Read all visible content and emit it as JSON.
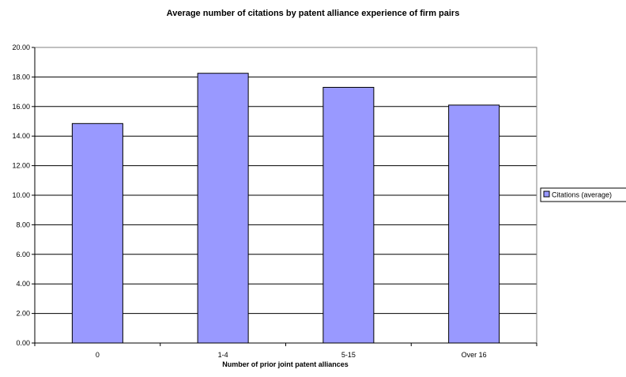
{
  "chart_data": {
    "type": "bar",
    "title": "Average number of citations by patent alliance experience of firm pairs",
    "xlabel": "Number of prior joint patent alliances",
    "ylabel": "",
    "categories": [
      "0",
      "1-4",
      "5-15",
      "Over 16"
    ],
    "series": [
      {
        "name": "Citations (average)",
        "values": [
          14.85,
          18.25,
          17.3,
          16.1
        ],
        "color": "#9999ff"
      }
    ],
    "ylim": [
      0,
      20
    ],
    "ytick_step": 2,
    "ytick_format_decimals": 2,
    "grid": true,
    "legend_position": "right"
  }
}
